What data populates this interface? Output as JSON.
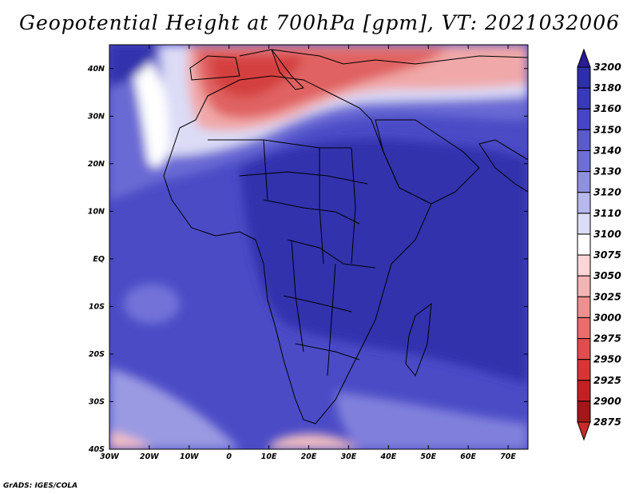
{
  "title": "Geopotential Height at 700hPa [gpm], VT: 2021032006",
  "credit": "GrADS: IGES/COLA",
  "map": {
    "lon_labels": [
      "30W",
      "20W",
      "10W",
      "0",
      "10E",
      "20E",
      "30E",
      "40E",
      "50E",
      "60E",
      "70E"
    ],
    "lat_labels": [
      "40N",
      "30N",
      "20N",
      "10N",
      "EQ",
      "10S",
      "20S",
      "30S",
      "40S"
    ],
    "lon_range": [
      -30,
      75
    ],
    "lat_range": [
      -40,
      45
    ]
  },
  "colorbar": {
    "levels": [
      "3200",
      "3180",
      "3160",
      "3150",
      "3140",
      "3130",
      "3120",
      "3110",
      "3100",
      "3075",
      "3050",
      "3025",
      "3000",
      "2975",
      "2950",
      "2925",
      "2900",
      "2875"
    ],
    "colors": [
      "#2a1a96",
      "#2e2ea8",
      "#3a3ab8",
      "#4646c4",
      "#5a5acb",
      "#6e6ed6",
      "#9090e0",
      "#b8b8ef",
      "#dcdcf7",
      "#ffffff",
      "#fbd6d6",
      "#f5b4b4",
      "#ef9090",
      "#e86e6e",
      "#df4e4e",
      "#d43636",
      "#c02222",
      "#a01818",
      "#c82a2a"
    ]
  }
}
